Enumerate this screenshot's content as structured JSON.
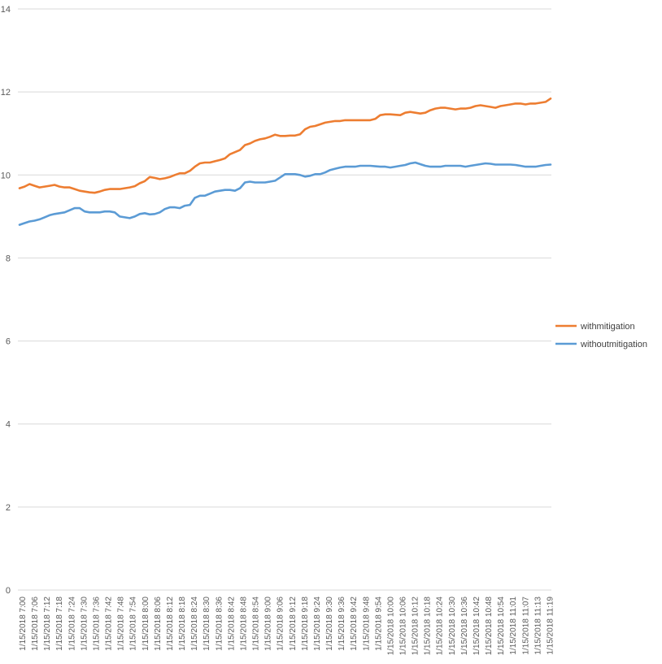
{
  "chart_data": {
    "type": "line",
    "title": "",
    "xlabel": "",
    "ylabel": "",
    "ylim": [
      0,
      14
    ],
    "y_ticks": [
      "0",
      "2",
      "4",
      "6",
      "8",
      "10",
      "12",
      "14"
    ],
    "grid": true,
    "legend_position": "right",
    "x_tick_labels": [
      "1/15/2018 7:00",
      "1/15/2018 7:06",
      "1/15/2018 7:12",
      "1/15/2018 7:18",
      "1/15/2018 7:24",
      "1/15/2018 7:30",
      "1/15/2018 7:36",
      "1/15/2018 7:42",
      "1/15/2018 7:48",
      "1/15/2018 7:54",
      "1/15/2018 8:00",
      "1/15/2018 8:06",
      "1/15/2018 8:12",
      "1/15/2018 8:18",
      "1/15/2018 8:24",
      "1/15/2018 8:30",
      "1/15/2018 8:36",
      "1/15/2018 8:42",
      "1/15/2018 8:48",
      "1/15/2018 8:54",
      "1/15/2018 9:00",
      "1/15/2018 9:06",
      "1/15/2018 9:12",
      "1/15/2018 9:18",
      "1/15/2018 9:24",
      "1/15/2018 9:30",
      "1/15/2018 9:36",
      "1/15/2018 9:42",
      "1/15/2018 9:48",
      "1/15/2018 9:54",
      "1/15/2018 10:00",
      "1/15/2018 10:06",
      "1/15/2018 10:12",
      "1/15/2018 10:18",
      "1/15/2018 10:24",
      "1/15/2018 10:30",
      "1/15/2018 10:36",
      "1/15/2018 10:42",
      "1/15/2018 10:48",
      "1/15/2018 10:54",
      "1/15/2018 11:01",
      "1/15/2018 11:07",
      "1/15/2018 11:13",
      "1/15/2018 11:19"
    ],
    "x_start": "1/15/2018 7:00",
    "x_end": "1/15/2018 11:22",
    "series": [
      {
        "name": "withmitigation",
        "color": "#ED7D31",
        "values": [
          9.68,
          9.72,
          9.78,
          9.74,
          9.7,
          9.72,
          9.74,
          9.76,
          9.72,
          9.7,
          9.7,
          9.66,
          9.62,
          9.6,
          9.58,
          9.57,
          9.6,
          9.64,
          9.66,
          9.66,
          9.66,
          9.68,
          9.7,
          9.73,
          9.8,
          9.85,
          9.95,
          9.93,
          9.9,
          9.92,
          9.95,
          10.0,
          10.04,
          10.04,
          10.1,
          10.2,
          10.28,
          10.3,
          10.3,
          10.33,
          10.36,
          10.4,
          10.5,
          10.55,
          10.6,
          10.72,
          10.76,
          10.82,
          10.86,
          10.88,
          10.92,
          10.97,
          10.94,
          10.94,
          10.95,
          10.95,
          10.98,
          11.1,
          11.16,
          11.18,
          11.22,
          11.26,
          11.28,
          11.3,
          11.3,
          11.32,
          11.32,
          11.32,
          11.32,
          11.32,
          11.32,
          11.35,
          11.44,
          11.46,
          11.46,
          11.45,
          11.44,
          11.5,
          11.52,
          11.5,
          11.48,
          11.5,
          11.56,
          11.6,
          11.62,
          11.62,
          11.6,
          11.58,
          11.6,
          11.6,
          11.62,
          11.66,
          11.68,
          11.66,
          11.64,
          11.62,
          11.66,
          11.68,
          11.7,
          11.72,
          11.72,
          11.7,
          11.72,
          11.72,
          11.74,
          11.76,
          11.84
        ]
      },
      {
        "name": "withoutmitigation",
        "color": "#5B9BD5",
        "values": [
          8.8,
          8.84,
          8.88,
          8.9,
          8.93,
          8.98,
          9.03,
          9.06,
          9.08,
          9.1,
          9.15,
          9.2,
          9.2,
          9.12,
          9.1,
          9.1,
          9.1,
          9.12,
          9.12,
          9.1,
          9.0,
          8.98,
          8.96,
          9.0,
          9.06,
          9.08,
          9.05,
          9.06,
          9.1,
          9.18,
          9.22,
          9.22,
          9.2,
          9.26,
          9.28,
          9.45,
          9.5,
          9.5,
          9.55,
          9.6,
          9.62,
          9.64,
          9.64,
          9.62,
          9.68,
          9.82,
          9.84,
          9.82,
          9.82,
          9.82,
          9.84,
          9.86,
          9.94,
          10.02,
          10.02,
          10.02,
          10.0,
          9.96,
          9.98,
          10.02,
          10.02,
          10.06,
          10.12,
          10.15,
          10.18,
          10.2,
          10.2,
          10.2,
          10.22,
          10.22,
          10.22,
          10.21,
          10.2,
          10.2,
          10.18,
          10.2,
          10.22,
          10.24,
          10.28,
          10.3,
          10.26,
          10.22,
          10.2,
          10.2,
          10.2,
          10.22,
          10.22,
          10.22,
          10.22,
          10.2,
          10.22,
          10.24,
          10.26,
          10.28,
          10.27,
          10.25,
          10.25,
          10.25,
          10.25,
          10.24,
          10.22,
          10.2,
          10.2,
          10.2,
          10.22,
          10.24,
          10.25
        ]
      }
    ]
  }
}
